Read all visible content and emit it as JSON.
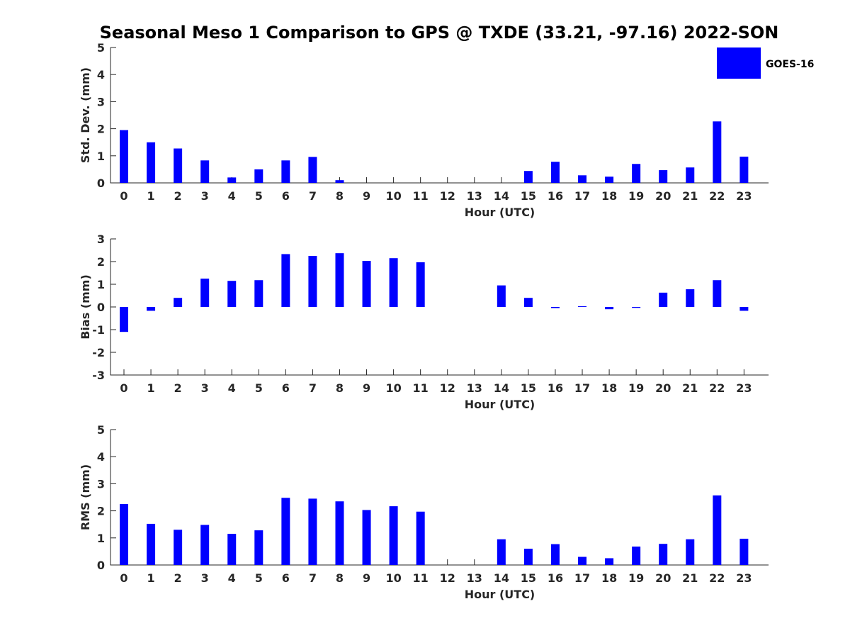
{
  "title": "Seasonal Meso 1 Comparison to GPS @ TXDE (33.21, -97.16) 2022-SON",
  "legend": {
    "label": "GOES-16",
    "color": "#0000ff",
    "placement": "top-right"
  },
  "chart_data": [
    {
      "type": "bar",
      "name": "std",
      "ylabel": "Std. Dev. (mm)",
      "xlabel": "Hour (UTC)",
      "ylim": [
        0,
        5
      ],
      "yticks": [
        0,
        1,
        2,
        3,
        4,
        5
      ],
      "categories": [
        "0",
        "1",
        "2",
        "3",
        "4",
        "5",
        "6",
        "7",
        "8",
        "9",
        "10",
        "11",
        "12",
        "13",
        "14",
        "15",
        "16",
        "17",
        "18",
        "19",
        "20",
        "21",
        "22",
        "23"
      ],
      "values": [
        1.95,
        1.5,
        1.27,
        0.83,
        0.2,
        0.5,
        0.83,
        0.96,
        0.1,
        null,
        null,
        null,
        null,
        null,
        null,
        0.44,
        0.78,
        0.28,
        0.23,
        0.7,
        0.47,
        0.57,
        2.27,
        0.97
      ],
      "color": "#0000ff"
    },
    {
      "type": "bar",
      "name": "bias",
      "ylabel": "Bias (mm)",
      "xlabel": "Hour (UTC)",
      "ylim": [
        -3,
        3
      ],
      "yticks": [
        -3,
        -2,
        -1,
        0,
        1,
        2,
        3
      ],
      "categories": [
        "0",
        "1",
        "2",
        "3",
        "4",
        "5",
        "6",
        "7",
        "8",
        "9",
        "10",
        "11",
        "12",
        "13",
        "14",
        "15",
        "16",
        "17",
        "18",
        "19",
        "20",
        "21",
        "22",
        "23"
      ],
      "values": [
        -1.1,
        -0.17,
        0.4,
        1.25,
        1.15,
        1.18,
        2.33,
        2.25,
        2.37,
        2.03,
        2.15,
        1.97,
        null,
        null,
        0.95,
        0.4,
        -0.05,
        0.03,
        -0.1,
        -0.04,
        0.63,
        0.78,
        1.18,
        -0.17
      ],
      "color": "#0000ff"
    },
    {
      "type": "bar",
      "name": "rms",
      "ylabel": "RMS (mm)",
      "xlabel": "Hour (UTC)",
      "ylim": [
        0,
        5
      ],
      "yticks": [
        0,
        1,
        2,
        3,
        4,
        5
      ],
      "categories": [
        "0",
        "1",
        "2",
        "3",
        "4",
        "5",
        "6",
        "7",
        "8",
        "9",
        "10",
        "11",
        "12",
        "13",
        "14",
        "15",
        "16",
        "17",
        "18",
        "19",
        "20",
        "21",
        "22",
        "23"
      ],
      "values": [
        2.25,
        1.52,
        1.3,
        1.48,
        1.15,
        1.28,
        2.48,
        2.45,
        2.35,
        2.03,
        2.17,
        1.97,
        null,
        null,
        0.95,
        0.6,
        0.77,
        0.3,
        0.25,
        0.68,
        0.78,
        0.95,
        2.57,
        0.97
      ],
      "color": "#0000ff"
    }
  ]
}
